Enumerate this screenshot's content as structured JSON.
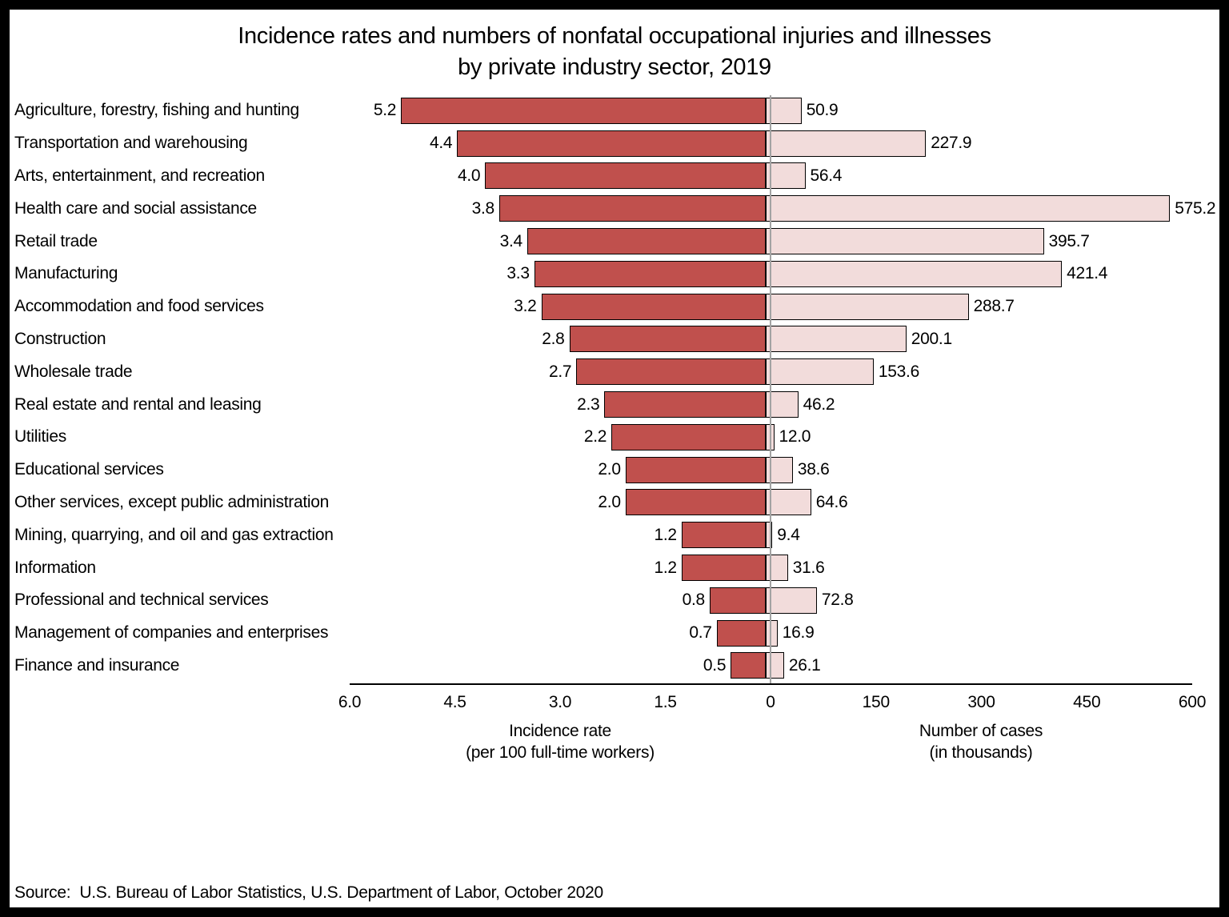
{
  "title": {
    "line1": "Incidence rates and numbers of nonfatal occupational injuries and illnesses",
    "line2": "by private industry sector, 2019"
  },
  "chart_data": {
    "type": "bar",
    "variant": "bidirectional-horizontal",
    "grid": false,
    "legend": false,
    "categories": [
      "Agriculture, forestry, fishing and hunting",
      "Transportation and warehousing",
      "Arts, entertainment, and recreation",
      "Health care and social assistance",
      "Retail trade",
      "Manufacturing",
      "Accommodation and food services",
      "Construction",
      "Wholesale trade",
      "Real estate and rental and leasing",
      "Utilities",
      "Educational services",
      "Other services, except public administration",
      "Mining, quarrying, and oil and gas extraction",
      "Information",
      "Professional and technical services",
      "Management of companies and enterprises",
      "Finance and insurance"
    ],
    "series": [
      {
        "name": "Incidence rate (per 100 full-time workers)",
        "side": "left",
        "color": "#c0504d",
        "axis_max": 6.0,
        "ticks": [
          "6.0",
          "4.5",
          "3.0",
          "1.5",
          "0"
        ],
        "values": [
          5.2,
          4.4,
          4.0,
          3.8,
          3.4,
          3.3,
          3.2,
          2.8,
          2.7,
          2.3,
          2.2,
          2.0,
          2.0,
          1.2,
          1.2,
          0.8,
          0.7,
          0.5
        ]
      },
      {
        "name": "Number of cases (in thousands)",
        "side": "right",
        "color": "#f2dcdb",
        "axis_max": 600,
        "ticks": [
          "150",
          "300",
          "450",
          "600"
        ],
        "values": [
          50.9,
          227.9,
          56.4,
          575.2,
          395.7,
          421.4,
          288.7,
          200.1,
          153.6,
          46.2,
          12.0,
          38.6,
          64.6,
          9.4,
          31.6,
          72.8,
          16.9,
          26.1
        ]
      }
    ],
    "axis_labels": {
      "left_line1": "Incidence rate",
      "left_line2": "(per 100 full-time workers)",
      "right_line1": "Number of cases",
      "right_line2": "(in thousands)"
    }
  },
  "source": "Source:  U.S. Bureau of Labor Statistics, U.S. Department of Labor, October 2020"
}
